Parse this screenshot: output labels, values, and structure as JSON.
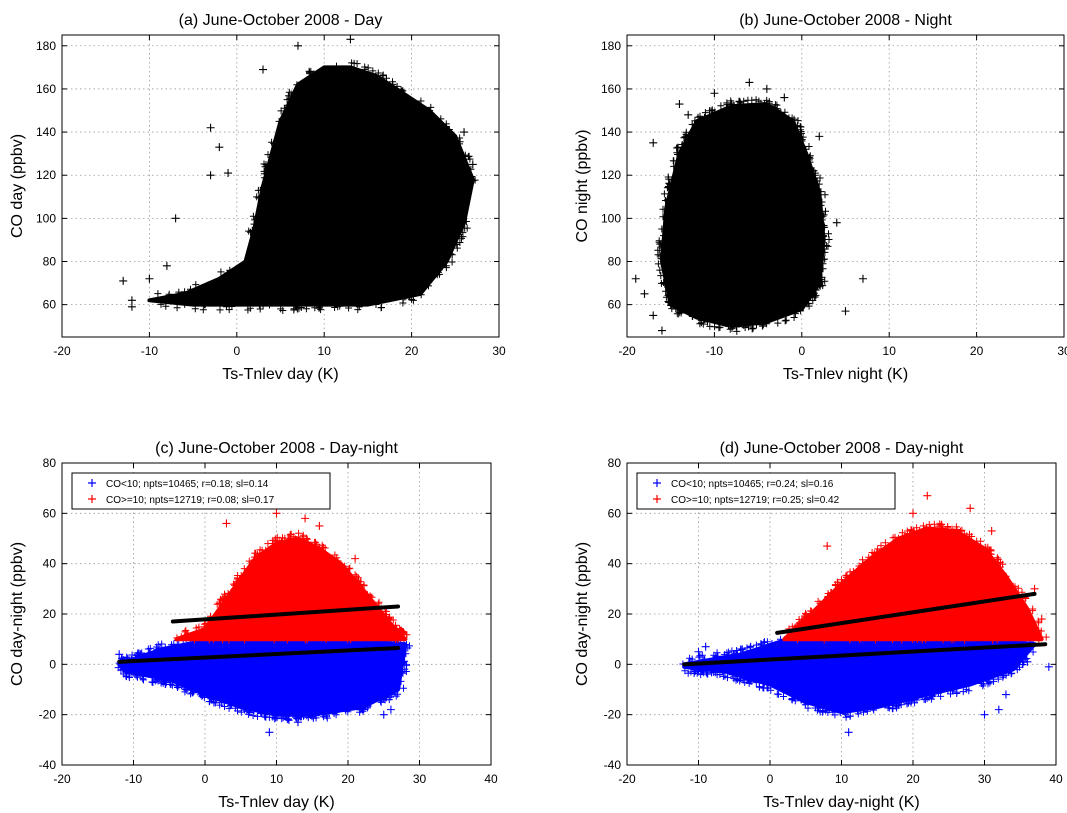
{
  "chart_data": [
    {
      "type": "scatter",
      "title": "(a) June-October 2008 - Day",
      "xlabel": "Ts-Tnlev day (K)",
      "ylabel": "CO day (ppbv)",
      "xlim": [
        -20,
        30
      ],
      "ylim": [
        45,
        185
      ],
      "xticks": [
        "-20",
        "-10",
        "0",
        "10",
        "20",
        "30"
      ],
      "yticks": [
        "60",
        "80",
        "100",
        "120",
        "140",
        "160",
        "180"
      ],
      "grid": true,
      "series": [
        {
          "color": "#000000",
          "marker": "+",
          "cloud": [
            [
              -10,
              62
            ],
            [
              -6,
              65
            ],
            [
              -2,
              72
            ],
            [
              1,
              80
            ],
            [
              2,
              95
            ],
            [
              3,
              115
            ],
            [
              5,
              145
            ],
            [
              7,
              162
            ],
            [
              10,
              170
            ],
            [
              13,
              170
            ],
            [
              16,
              166
            ],
            [
              19,
              158
            ],
            [
              22,
              150
            ],
            [
              25,
              138
            ],
            [
              27,
              118
            ],
            [
              26,
              98
            ],
            [
              24,
              80
            ],
            [
              21,
              65
            ],
            [
              15,
              60
            ],
            [
              8,
              60
            ],
            [
              0,
              60
            ],
            [
              -5,
              60
            ]
          ],
          "outliers": [
            [
              -13,
              71
            ],
            [
              -12,
              59
            ],
            [
              -12,
              62
            ],
            [
              -10,
              72
            ],
            [
              -8,
              78
            ],
            [
              -7,
              100
            ],
            [
              -3,
              120
            ],
            [
              -3,
              142
            ],
            [
              -2,
              133
            ],
            [
              -1,
              121
            ],
            [
              3,
              169
            ],
            [
              7,
              180
            ],
            [
              13,
              183
            ],
            [
              26,
              140
            ],
            [
              27,
              125
            ],
            [
              26,
              114
            ],
            [
              25,
              95
            ],
            [
              23,
              75
            ]
          ]
        }
      ]
    },
    {
      "type": "scatter",
      "title": "(b) June-October 2008 - Night",
      "xlabel": "Ts-Tnlev night (K)",
      "ylabel": "CO night (ppbv)",
      "xlim": [
        -20,
        30
      ],
      "ylim": [
        45,
        185
      ],
      "xticks": [
        "-20",
        "-10",
        "0",
        "10",
        "20",
        "30"
      ],
      "yticks": [
        "60",
        "80",
        "100",
        "120",
        "140",
        "160",
        "180"
      ],
      "grid": true,
      "series": [
        {
          "color": "#000000",
          "marker": "+",
          "cloud": [
            [
              -15,
              60
            ],
            [
              -16,
              80
            ],
            [
              -15.5,
              105
            ],
            [
              -14,
              130
            ],
            [
              -12,
              145
            ],
            [
              -8,
              152
            ],
            [
              -4,
              153
            ],
            [
              -1,
              145
            ],
            [
              0.5,
              130
            ],
            [
              2,
              112
            ],
            [
              2.5,
              90
            ],
            [
              2,
              70
            ],
            [
              0,
              58
            ],
            [
              -4,
              52
            ],
            [
              -8,
              50
            ],
            [
              -12,
              54
            ]
          ],
          "outliers": [
            [
              -19,
              72
            ],
            [
              -18,
              65
            ],
            [
              -17,
              135
            ],
            [
              -17,
              55
            ],
            [
              -16,
              48
            ],
            [
              -14,
              153
            ],
            [
              -13,
              148
            ],
            [
              -10,
              158
            ],
            [
              -6,
              163
            ],
            [
              -4,
              160
            ],
            [
              -2,
              156
            ],
            [
              2,
              138
            ],
            [
              4,
              98
            ],
            [
              5,
              57
            ],
            [
              7,
              72
            ]
          ]
        }
      ]
    },
    {
      "type": "scatter",
      "title": "(c) June-October 2008 - Day-night",
      "xlabel": "Ts-Tnlev day (K)",
      "ylabel": "CO day-night (ppbv)",
      "xlim": [
        -20,
        40
      ],
      "ylim": [
        -40,
        80
      ],
      "xticks": [
        "-20",
        "-10",
        "0",
        "10",
        "20",
        "30",
        "40"
      ],
      "yticks": [
        "-40",
        "-20",
        "0",
        "20",
        "40",
        "60",
        "80"
      ],
      "grid": true,
      "legend": "top-left",
      "series": [
        {
          "name": "CO<10; npts=10465; r=0.18; sl=0.14",
          "color": "#0000ff",
          "marker": "+",
          "band": [
            10,
            -12
          ],
          "cloud": [
            [
              -12,
              0
            ],
            [
              -6,
              6
            ],
            [
              0,
              9.5
            ],
            [
              10,
              9.5
            ],
            [
              20,
              9.5
            ],
            [
              28,
              8
            ],
            [
              27,
              -10
            ],
            [
              22,
              -17
            ],
            [
              15,
              -20
            ],
            [
              10,
              -20
            ],
            [
              5,
              -17
            ],
            [
              0,
              -12
            ],
            [
              -5,
              -6
            ],
            [
              -11,
              -3
            ]
          ],
          "outliers": [
            [
              -12,
              4
            ],
            [
              -9,
              4
            ],
            [
              9,
              -27
            ],
            [
              13,
              -23
            ],
            [
              25,
              -20
            ],
            [
              26,
              -18
            ],
            [
              27,
              2
            ],
            [
              -2,
              -10
            ]
          ],
          "fit": [
            [
              -12,
              1
            ],
            [
              27,
              6.5
            ]
          ]
        },
        {
          "name": "CO>=10; npts=12719; r=0.08; sl=0.17",
          "color": "#ff0000",
          "marker": "+",
          "band": [
            10,
            60
          ],
          "cloud": [
            [
              -4,
              10
            ],
            [
              0,
              14
            ],
            [
              4,
              30
            ],
            [
              7,
              42
            ],
            [
              10,
              48
            ],
            [
              13,
              50
            ],
            [
              16,
              46
            ],
            [
              19,
              40
            ],
            [
              22,
              30
            ],
            [
              26,
              16
            ],
            [
              28,
              10
            ]
          ],
          "outliers": [
            [
              3,
              56
            ],
            [
              10,
              60
            ],
            [
              14,
              58
            ],
            [
              16,
              55
            ],
            [
              21,
              42
            ]
          ],
          "fit": [
            [
              -4.5,
              17
            ],
            [
              27,
              23
            ]
          ]
        }
      ]
    },
    {
      "type": "scatter",
      "title": "(d) June-October 2008 - Day-night",
      "xlabel": "Ts-Tnlev day-night (K)",
      "ylabel": "CO day-night (ppbv)",
      "xlim": [
        -20,
        40
      ],
      "ylim": [
        -40,
        80
      ],
      "xticks": [
        "-20",
        "-10",
        "0",
        "10",
        "20",
        "30",
        "40"
      ],
      "yticks": [
        "-40",
        "-20",
        "0",
        "20",
        "40",
        "60",
        "80"
      ],
      "grid": true,
      "legend": "top-left",
      "series": [
        {
          "name": "CO<10; npts=10465; r=0.24; sl=0.16",
          "color": "#0000ff",
          "marker": "+",
          "band": [
            10,
            -12
          ],
          "cloud": [
            [
              -12,
              0
            ],
            [
              -4,
              4
            ],
            [
              2,
              9.5
            ],
            [
              12,
              9.5
            ],
            [
              22,
              9.5
            ],
            [
              32,
              9.5
            ],
            [
              37,
              8
            ],
            [
              34,
              -2
            ],
            [
              28,
              -8
            ],
            [
              22,
              -12
            ],
            [
              15,
              -17
            ],
            [
              10,
              -19
            ],
            [
              5,
              -15
            ],
            [
              0,
              -8
            ],
            [
              -6,
              -3
            ],
            [
              -12,
              -1
            ]
          ],
          "outliers": [
            [
              -10,
              5
            ],
            [
              -9,
              7
            ],
            [
              11,
              -27
            ],
            [
              30,
              -20
            ],
            [
              32,
              -18
            ],
            [
              33,
              -12
            ],
            [
              39,
              -1
            ],
            [
              36,
              1
            ]
          ],
          "fit": [
            [
              -12,
              0
            ],
            [
              38.5,
              8
            ]
          ]
        },
        {
          "name": "CO>=10; npts=12719; r=0.25; sl=0.42",
          "color": "#ff0000",
          "marker": "+",
          "band": [
            10,
            60
          ],
          "cloud": [
            [
              2,
              10
            ],
            [
              5,
              18
            ],
            [
              10,
              32
            ],
            [
              14,
              42
            ],
            [
              18,
              50
            ],
            [
              22,
              54
            ],
            [
              26,
              53
            ],
            [
              30,
              46
            ],
            [
              33,
              35
            ],
            [
              36,
              22
            ],
            [
              38,
              10
            ]
          ],
          "outliers": [
            [
              8,
              47
            ],
            [
              13,
              40
            ],
            [
              20,
              60
            ],
            [
              22,
              67
            ],
            [
              28,
              62
            ],
            [
              31,
              53
            ],
            [
              37,
              30
            ],
            [
              38,
              18
            ]
          ],
          "fit": [
            [
              1,
              12.5
            ],
            [
              37,
              28
            ]
          ]
        }
      ]
    }
  ]
}
